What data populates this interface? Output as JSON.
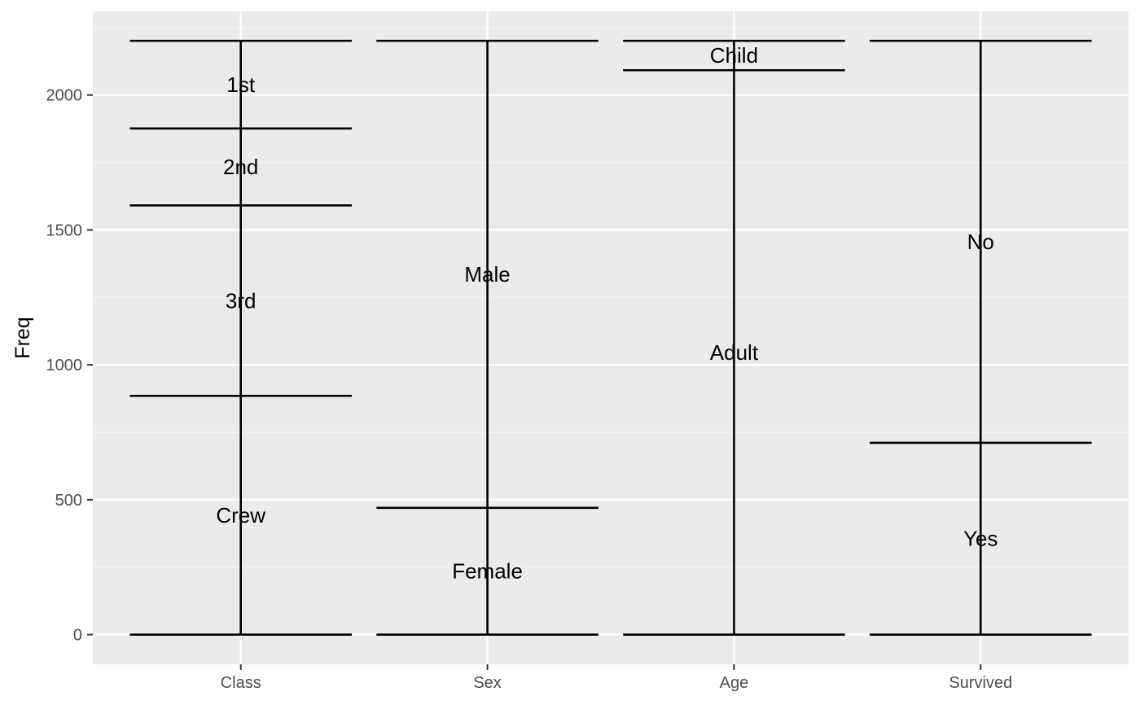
{
  "chart_data": {
    "type": "alluvial-strata",
    "title": "",
    "xlabel": "",
    "ylabel": "Freq",
    "ylim": [
      -110,
      2310
    ],
    "y_ticks": [
      0,
      500,
      1000,
      1500,
      2000
    ],
    "y_tick_labels": [
      "0",
      "500",
      "1000",
      "1500",
      "2000"
    ],
    "grid": true,
    "legend": "none",
    "total": 2201,
    "axes": [
      {
        "name": "Class",
        "strata": [
          {
            "label": "Crew",
            "value": 885
          },
          {
            "label": "3rd",
            "value": 706
          },
          {
            "label": "2nd",
            "value": 285
          },
          {
            "label": "1st",
            "value": 325
          }
        ]
      },
      {
        "name": "Sex",
        "strata": [
          {
            "label": "Female",
            "value": 470
          },
          {
            "label": "Male",
            "value": 1731
          }
        ]
      },
      {
        "name": "Age",
        "strata": [
          {
            "label": "Adult",
            "value": 2092
          },
          {
            "label": "Child",
            "value": 109
          }
        ]
      },
      {
        "name": "Survived",
        "strata": [
          {
            "label": "Yes",
            "value": 711
          },
          {
            "label": "No",
            "value": 1490
          }
        ]
      }
    ],
    "colors": {
      "panel_background": "#ebebeb",
      "grid_major": "#ffffff",
      "grid_minor": "#f5f5f5",
      "stratum_line": "#000000",
      "tick_text": "#4d4d4d",
      "axis_title": "#000000"
    }
  }
}
